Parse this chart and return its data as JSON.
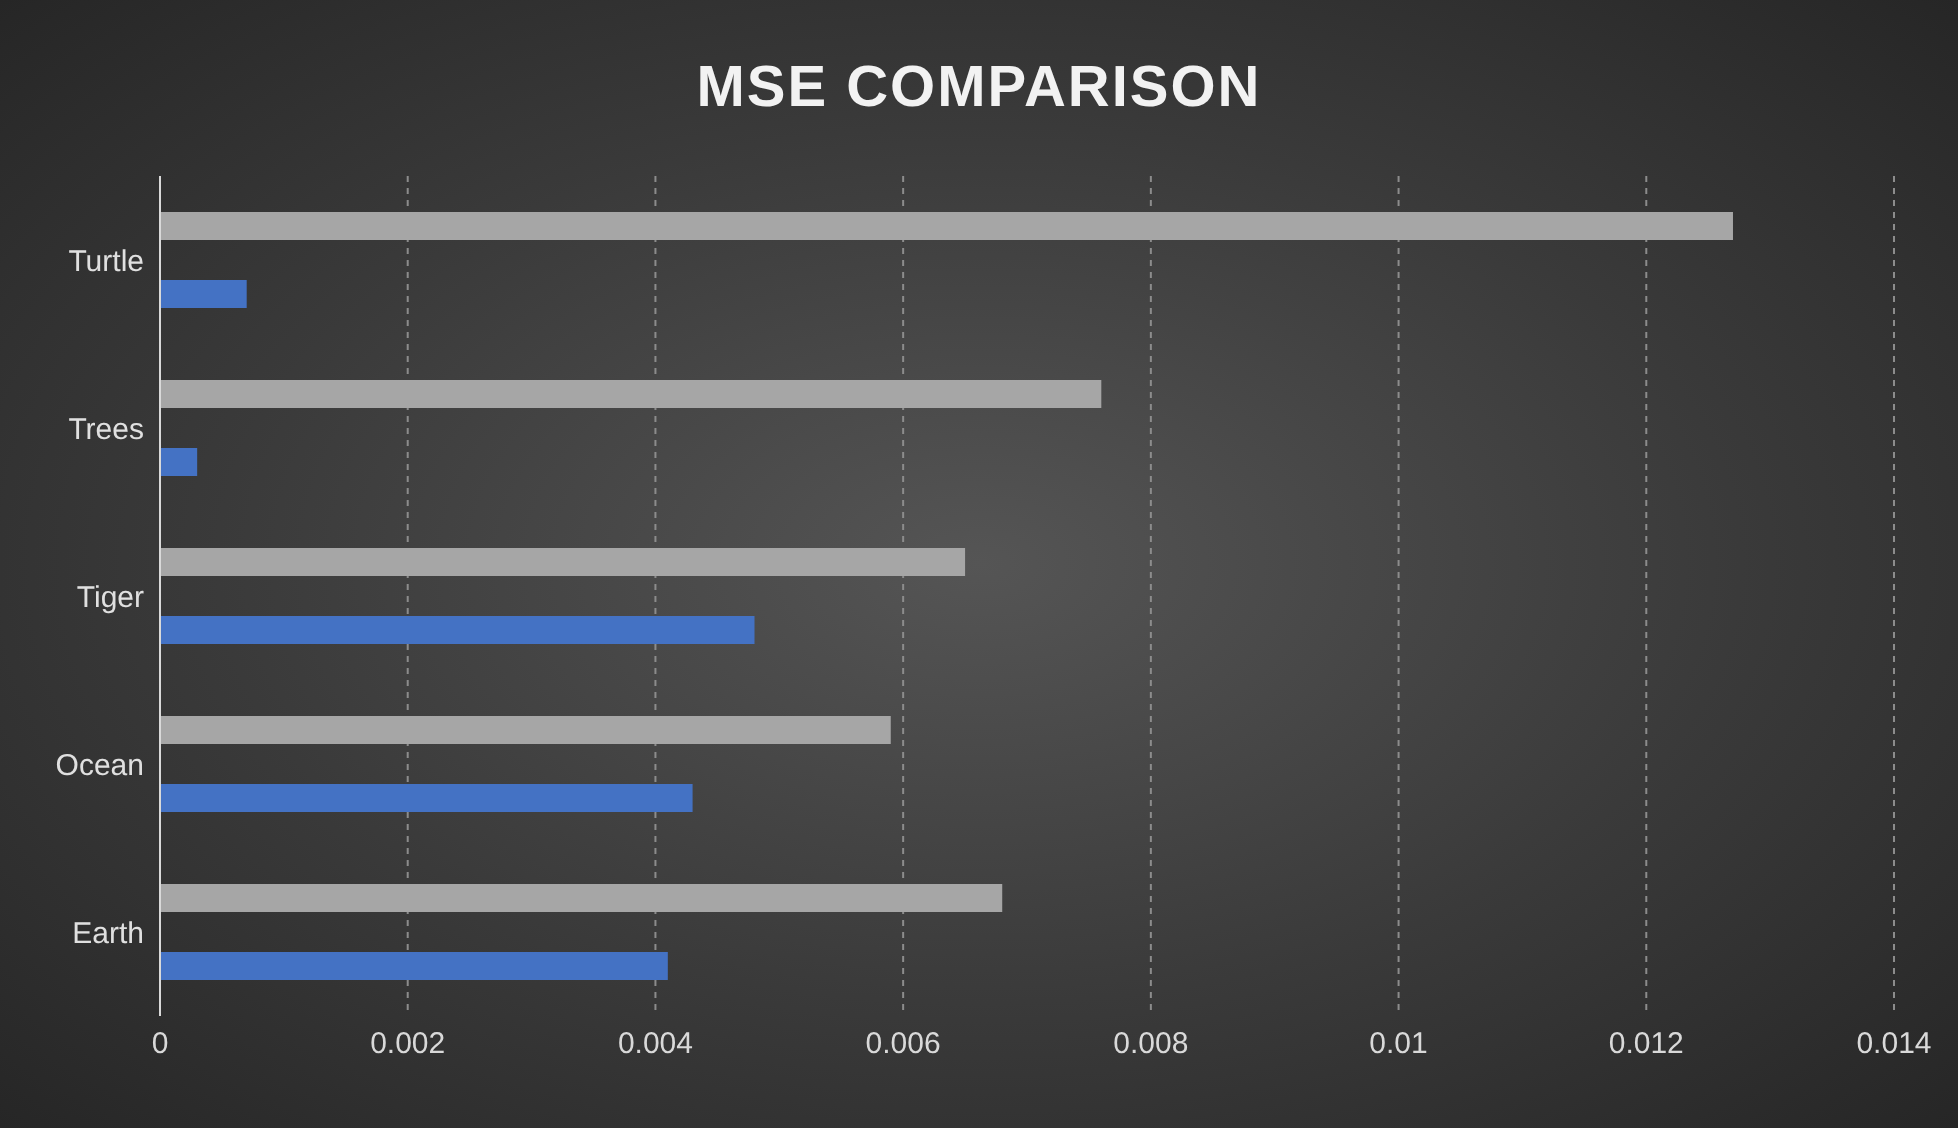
{
  "chart_data": {
    "type": "bar",
    "orientation": "horizontal",
    "title": "MSE COMPARISON",
    "categories": [
      "Turtle",
      "Trees",
      "Tiger",
      "Ocean",
      "Earth"
    ],
    "series": [
      {
        "color": "#a6a6a6",
        "values": [
          0.0127,
          0.0076,
          0.0065,
          0.0059,
          0.0068
        ]
      },
      {
        "color": "#4472c4",
        "values": [
          0.0007,
          0.0003,
          0.0048,
          0.0043,
          0.0041
        ]
      }
    ],
    "xlim": [
      0,
      0.014
    ],
    "xticks": [
      0,
      0.002,
      0.004,
      0.006,
      0.008,
      0.01,
      0.012,
      0.014
    ],
    "grid": "x",
    "legend": false
  }
}
